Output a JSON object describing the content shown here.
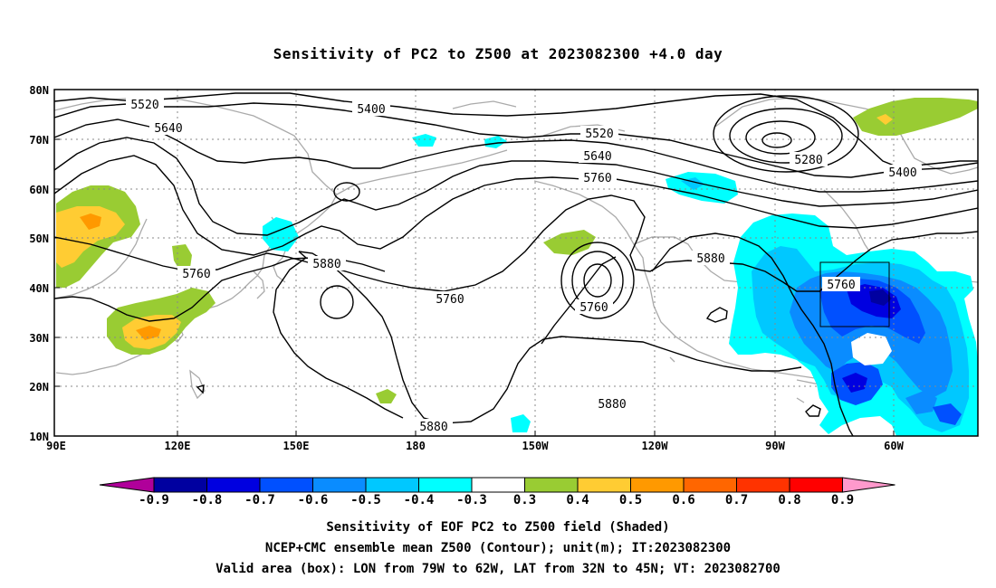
{
  "title": "Sensitivity of PC2 to Z500 at 2023082300 +4.0 day",
  "map": {
    "lat_labels": [
      "80N",
      "70N",
      "60N",
      "50N",
      "40N",
      "30N",
      "20N",
      "10N"
    ],
    "lon_labels": [
      "90E",
      "120E",
      "150E",
      "180",
      "150W",
      "120W",
      "90W",
      "60W"
    ],
    "valid_box": {
      "lon_min": -79,
      "lon_max": -62,
      "lat_min": 32,
      "lat_max": 45
    },
    "contour_labels": [
      "5520",
      "5640",
      "5400",
      "5520",
      "5640",
      "5760",
      "5880",
      "5760",
      "5760",
      "5760",
      "5880",
      "5760",
      "5280",
      "5400",
      "5880",
      "5880"
    ]
  },
  "colorbar": {
    "labels": [
      "-0.9",
      "-0.8",
      "-0.7",
      "-0.6",
      "-0.5",
      "-0.4",
      "-0.3",
      "0.3",
      "0.4",
      "0.5",
      "0.6",
      "0.7",
      "0.8",
      "0.9"
    ],
    "colors": [
      "#b0009a",
      "#0000a0",
      "#0000e0",
      "#0050ff",
      "#0a8cff",
      "#00c8ff",
      "#00ffff",
      "#ffffff",
      "#99cc33",
      "#ffcc33",
      "#ff9900",
      "#ff6600",
      "#ff3300",
      "#ff0000",
      "#ff99cc"
    ]
  },
  "captions": [
    "Sensitivity of EOF PC2 to Z500 field (Shaded)",
    "NCEP+CMC ensemble mean Z500 (Contour); unit(m); IT:2023082300",
    "Valid area (box): LON from 79W to 62W, LAT from 32N to 45N; VT: 2023082700"
  ]
}
